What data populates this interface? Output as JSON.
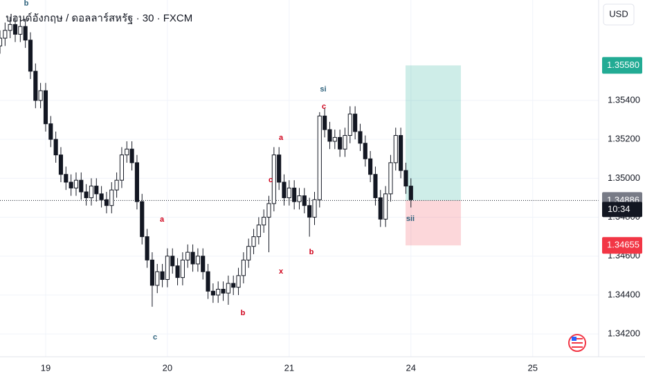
{
  "chart_data": {
    "type": "candlestick",
    "title": "ปอนด์อังกฤษ / ดอลลาร์สหรัฐ · 30 · FXCM",
    "currency": "USD",
    "up_color": "#ffffff",
    "down_color": "#131722",
    "x": [
      -9,
      -8,
      -7,
      -6,
      -5,
      -4,
      -3,
      -2,
      -1,
      0,
      1,
      2,
      3,
      4,
      5,
      6,
      7,
      8,
      9,
      10,
      11,
      12,
      13,
      14,
      15,
      16,
      17,
      18,
      19,
      20,
      21,
      22,
      23,
      24,
      25,
      26,
      27,
      28,
      29,
      30,
      31,
      32,
      33,
      34,
      35,
      36,
      37,
      38,
      39,
      40,
      41,
      42,
      43,
      44,
      45,
      46,
      47,
      48,
      49,
      50,
      51,
      52,
      53,
      54,
      55,
      56,
      57,
      58,
      59,
      60,
      61,
      62,
      63,
      64,
      65,
      66,
      67,
      68,
      69,
      70,
      71,
      72
    ],
    "open": [
      1.3568,
      1.3572,
      1.3576,
      1.3579,
      1.3574,
      1.3578,
      1.3571,
      1.3555,
      1.354,
      1.3545,
      1.3528,
      1.352,
      1.3512,
      1.3502,
      1.3498,
      1.3495,
      1.3499,
      1.3493,
      1.349,
      1.3496,
      1.3492,
      1.3489,
      1.3486,
      1.3494,
      1.3499,
      1.3512,
      1.3515,
      1.3508,
      1.3488,
      1.347,
      1.3458,
      1.3445,
      1.3452,
      1.3448,
      1.346,
      1.3455,
      1.3449,
      1.3458,
      1.3462,
      1.3456,
      1.346,
      1.3452,
      1.3442,
      1.344,
      1.3443,
      1.3441,
      1.3446,
      1.3444,
      1.345,
      1.3458,
      1.3465,
      1.347,
      1.3476,
      1.348,
      1.3487,
      1.3512,
      1.3498,
      1.349,
      1.3495,
      1.3488,
      1.3491,
      1.3486,
      1.348,
      1.3489,
      1.3532,
      1.3525,
      1.3519,
      1.3521,
      1.3515,
      1.3522,
      1.3533,
      1.3524,
      1.3518,
      1.351,
      1.3502,
      1.349,
      1.3479,
      1.3492,
      1.3508,
      1.3522,
      1.3504,
      1.3496
    ],
    "high": [
      1.3576,
      1.358,
      1.3583,
      1.3583,
      1.3582,
      1.3582,
      1.3575,
      1.3559,
      1.3549,
      1.3549,
      1.3532,
      1.3524,
      1.3516,
      1.3506,
      1.3502,
      1.3503,
      1.3503,
      1.3497,
      1.35,
      1.35,
      1.3496,
      1.3493,
      1.3498,
      1.3503,
      1.3516,
      1.3519,
      1.3519,
      1.3512,
      1.3492,
      1.3474,
      1.3462,
      1.3456,
      1.3456,
      1.3464,
      1.3464,
      1.3459,
      1.3462,
      1.3466,
      1.3466,
      1.3464,
      1.3464,
      1.3456,
      1.3446,
      1.3447,
      1.3447,
      1.345,
      1.345,
      1.3454,
      1.3462,
      1.3469,
      1.3474,
      1.348,
      1.3484,
      1.3491,
      1.3516,
      1.3516,
      1.3502,
      1.3499,
      1.3499,
      1.3495,
      1.3495,
      1.349,
      1.3493,
      1.3534,
      1.3536,
      1.3529,
      1.3525,
      1.3525,
      1.3526,
      1.3537,
      1.3537,
      1.3528,
      1.3522,
      1.3514,
      1.3506,
      1.3494,
      1.3496,
      1.3512,
      1.3526,
      1.3526,
      1.3508,
      1.35
    ],
    "low": [
      1.3564,
      1.3568,
      1.3572,
      1.357,
      1.357,
      1.3567,
      1.3551,
      1.3536,
      1.3536,
      1.3524,
      1.3516,
      1.3508,
      1.3498,
      1.3494,
      1.3491,
      1.3491,
      1.3489,
      1.3486,
      1.3486,
      1.3488,
      1.3485,
      1.3482,
      1.3482,
      1.349,
      1.3495,
      1.3508,
      1.3504,
      1.3484,
      1.3466,
      1.3454,
      1.3434,
      1.3441,
      1.3444,
      1.3444,
      1.3451,
      1.3445,
      1.3445,
      1.3454,
      1.3452,
      1.3452,
      1.3448,
      1.3438,
      1.3436,
      1.3436,
      1.3437,
      1.3435,
      1.344,
      1.344,
      1.3446,
      1.3454,
      1.3461,
      1.3466,
      1.3472,
      1.3462,
      1.3483,
      1.3494,
      1.3486,
      1.3486,
      1.3484,
      1.3484,
      1.3482,
      1.347,
      1.3476,
      1.3485,
      1.3521,
      1.3515,
      1.3515,
      1.3511,
      1.3511,
      1.3518,
      1.352,
      1.3514,
      1.3506,
      1.3498,
      1.3486,
      1.3475,
      1.3475,
      1.3488,
      1.3504,
      1.35,
      1.3492,
      1.3485
    ],
    "close": [
      1.3572,
      1.3576,
      1.3579,
      1.3574,
      1.3578,
      1.3571,
      1.3555,
      1.354,
      1.3545,
      1.3528,
      1.352,
      1.3512,
      1.3502,
      1.3498,
      1.3495,
      1.3499,
      1.3493,
      1.349,
      1.3496,
      1.3492,
      1.3489,
      1.3486,
      1.3494,
      1.3499,
      1.3512,
      1.3515,
      1.3508,
      1.3488,
      1.347,
      1.3458,
      1.3445,
      1.3452,
      1.3448,
      1.346,
      1.3455,
      1.3449,
      1.3458,
      1.3462,
      1.3456,
      1.346,
      1.3452,
      1.3442,
      1.344,
      1.3443,
      1.3441,
      1.3446,
      1.3444,
      1.345,
      1.3458,
      1.3465,
      1.347,
      1.3476,
      1.348,
      1.3487,
      1.3512,
      1.3498,
      1.349,
      1.3495,
      1.3488,
      1.3491,
      1.3486,
      1.348,
      1.3489,
      1.3532,
      1.3525,
      1.3519,
      1.3521,
      1.3515,
      1.3522,
      1.3533,
      1.3524,
      1.3518,
      1.351,
      1.3502,
      1.349,
      1.3479,
      1.3492,
      1.3508,
      1.3522,
      1.3504,
      1.3496,
      1.3489
    ],
    "xlim": [
      -9,
      109
    ],
    "xticks": [
      {
        "value": 0,
        "label": "19"
      },
      {
        "value": 24,
        "label": "20"
      },
      {
        "value": 48,
        "label": "21"
      },
      {
        "value": 72,
        "label": "24"
      },
      {
        "value": 96,
        "label": "25"
      }
    ],
    "ylim": [
      1.34083,
      1.35916
    ],
    "yticks": [
      {
        "value": 1.354,
        "label": "1.35400"
      },
      {
        "value": 1.352,
        "label": "1.35200"
      },
      {
        "value": 1.35,
        "label": "1.35000"
      },
      {
        "value": 1.348,
        "label": "1.34800"
      },
      {
        "value": 1.346,
        "label": "1.34600"
      },
      {
        "value": 1.344,
        "label": "1.34400"
      },
      {
        "value": 1.342,
        "label": "1.34200"
      }
    ],
    "grid": true,
    "position": {
      "target": {
        "value": 1.3558,
        "label": "1.35580",
        "color": "#22ab94"
      },
      "entry": {
        "value": 1.34886,
        "label": "1.34886",
        "color": "#787b86"
      },
      "stop": {
        "value": 1.34655,
        "label": "1.34655",
        "color": "#f23645"
      }
    },
    "countdown": "10:34",
    "annotations": [
      "b",
      "a",
      "c",
      "b",
      "x",
      "c",
      "a",
      "b",
      "c",
      "si",
      "sii"
    ]
  }
}
